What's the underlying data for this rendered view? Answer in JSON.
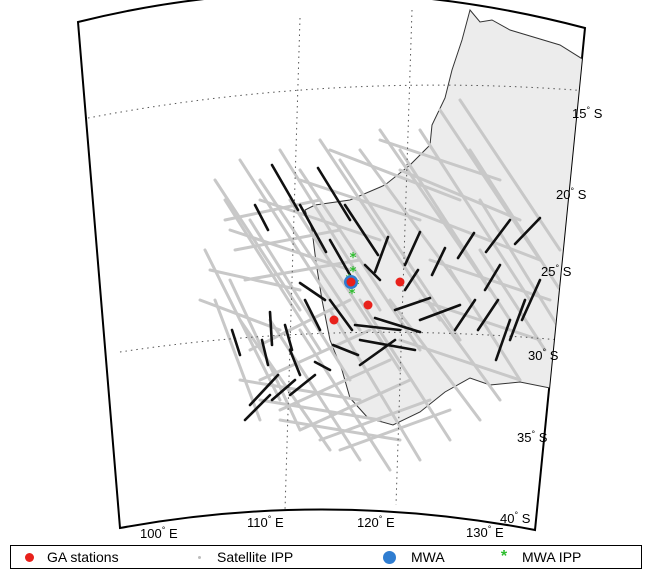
{
  "map": {
    "lat_labels": [
      {
        "num": "15",
        "hemi": "S"
      },
      {
        "num": "20",
        "hemi": "S"
      },
      {
        "num": "25",
        "hemi": "S"
      },
      {
        "num": "30",
        "hemi": "S"
      },
      {
        "num": "35",
        "hemi": "S"
      },
      {
        "num": "40",
        "hemi": "S"
      }
    ],
    "lon_labels": [
      {
        "num": "100",
        "hemi": "E"
      },
      {
        "num": "110",
        "hemi": "E"
      },
      {
        "num": "120",
        "hemi": "E"
      },
      {
        "num": "130",
        "hemi": "E"
      }
    ],
    "deg_symbol": "°",
    "land_color": "#ececec",
    "ipp_color": "#c8c8c8",
    "mwa_ipp_track_color": "#111111"
  },
  "legend": {
    "items": [
      {
        "label": "GA stations",
        "symbol": "red-dot",
        "color": "#e8211b"
      },
      {
        "label": "Satellite IPP",
        "symbol": "grey-dot",
        "color": "#bdbdbd"
      },
      {
        "label": "MWA",
        "symbol": "blue-dot",
        "color": "#2f7dd1"
      },
      {
        "label": "MWA IPP",
        "symbol": "green-star",
        "color": "#2dbd2d"
      }
    ]
  }
}
